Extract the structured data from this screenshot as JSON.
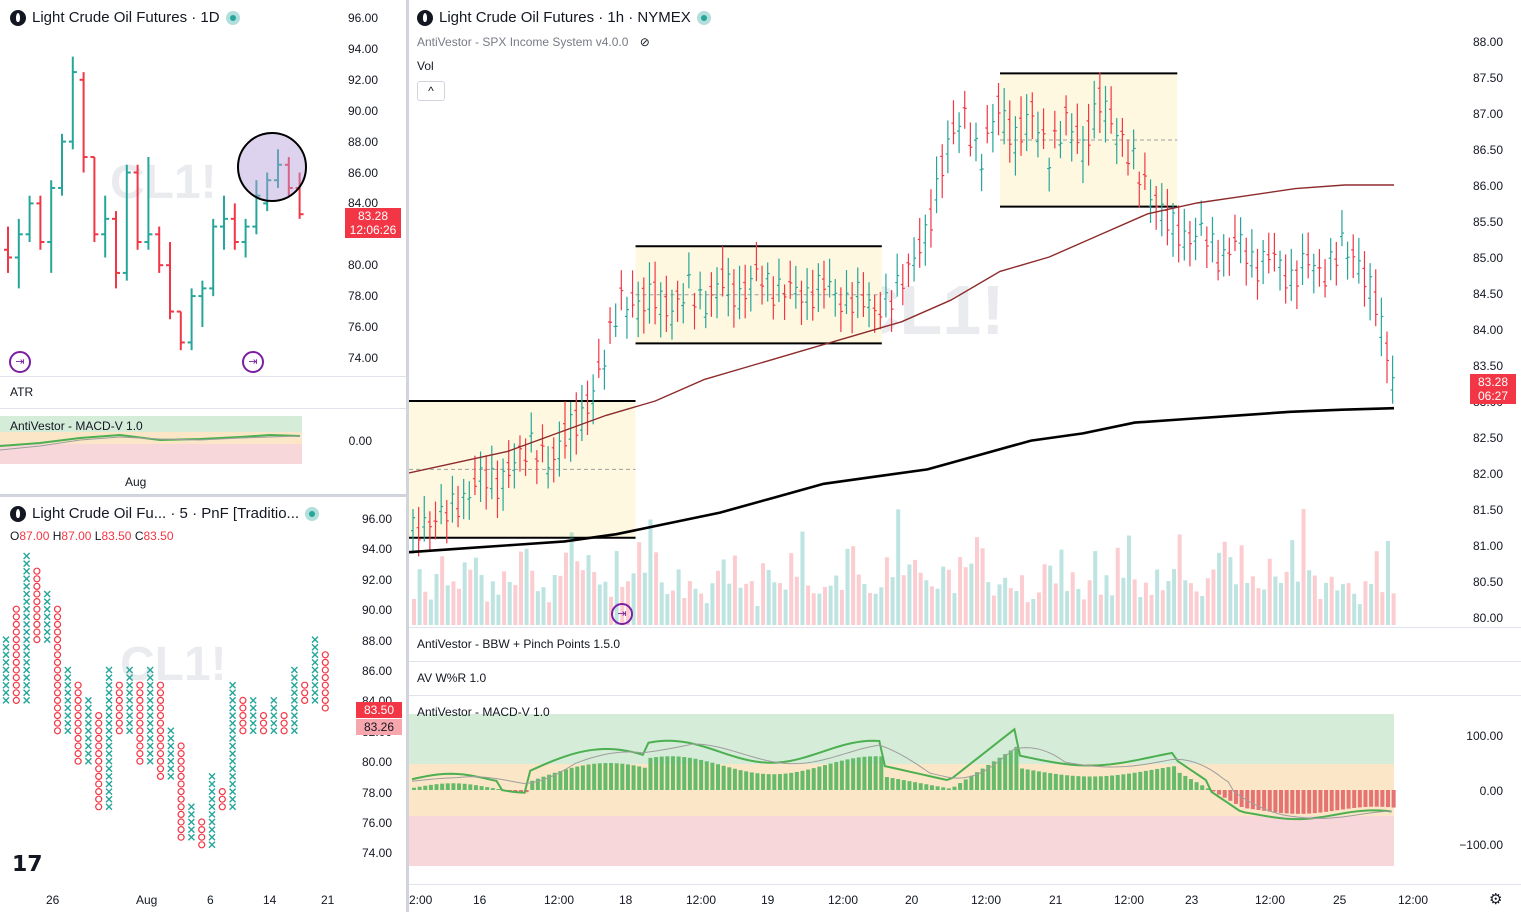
{
  "left_top": {
    "title": "Light Crude Oil Futures · 1D",
    "price_ticks": [
      "96.00",
      "94.00",
      "92.00",
      "90.00",
      "88.00",
      "86.00",
      "84.00",
      "82.00",
      "80.00",
      "78.00",
      "76.00",
      "74.00"
    ],
    "last_price": "83.28",
    "countdown": "12:06:26",
    "watermark": "CL1!",
    "atr_label": "ATR",
    "macd_label": "AntiVestor - MACD-V 1.0",
    "macd_tick": "0.00",
    "time_label": "Aug"
  },
  "left_bottom": {
    "title": "Light Crude Oil Fu... · 5 · PnF [Traditio...",
    "ohlc": {
      "o_label": "O",
      "o": "87.00",
      "h_label": "H",
      "h": "87.00",
      "l_label": "L",
      "l": "83.50",
      "c_label": "C",
      "c": "83.50"
    },
    "price_ticks": [
      "96.00",
      "94.00",
      "92.00",
      "90.00",
      "88.00",
      "86.00",
      "84.00",
      "82.00",
      "80.00",
      "78.00",
      "76.00",
      "74.00"
    ],
    "badge_1": "83.50",
    "badge_2": "83.26",
    "watermark": "CL1!",
    "time_ticks": [
      "26",
      "Aug",
      "6",
      "14",
      "21"
    ]
  },
  "right": {
    "title": "Light Crude Oil Futures · 1h · NYMEX",
    "indicator_1": "AntiVestor - SPX Income System v4.0.0",
    "vol_label": "Vol",
    "price_ticks": [
      "88.00",
      "87.50",
      "87.00",
      "86.50",
      "86.00",
      "85.50",
      "85.00",
      "84.50",
      "84.00",
      "83.50",
      "83.00",
      "82.50",
      "82.00",
      "81.50",
      "81.00",
      "80.50",
      "80.00"
    ],
    "last_price": "83.28",
    "countdown": "06:27",
    "watermark": "CL1!",
    "bbw_label": "AntiVestor - BBW + Pinch Points 1.5.0",
    "wr_label": "AV W%R 1.0",
    "macd_label": "AntiVestor - MACD-V 1.0",
    "macd_ticks": [
      "100.00",
      "0.00",
      "−100.00"
    ],
    "time_ticks": [
      "2:00",
      "16",
      "12:00",
      "18",
      "12:00",
      "19",
      "12:00",
      "20",
      "12:00",
      "21",
      "12:00",
      "23",
      "12:00",
      "25",
      "12:00"
    ]
  },
  "icons": {
    "replay": "replay-icon",
    "visibility": "eye-off-icon",
    "collapse": "chevron-up-icon",
    "settings": "gear-icon",
    "logo": "tradingview-logo"
  },
  "colors": {
    "up": "#26a69a",
    "down": "#f23645",
    "zone": "#fff8e1",
    "ma_dark": "#000000",
    "ma_red": "#8d2b2b",
    "macd_line": "#4caf50"
  },
  "chart_data": [
    {
      "type": "bar",
      "title": "Light Crude Oil Futures · 1D",
      "ylim": [
        73,
        97
      ],
      "ohlc": [
        [
          81.0,
          82.5,
          79.5,
          80.5
        ],
        [
          80.5,
          83.0,
          78.5,
          82.0
        ],
        [
          82.0,
          84.5,
          81.5,
          84.0
        ],
        [
          84.0,
          84.5,
          81.0,
          81.5
        ],
        [
          81.5,
          85.5,
          79.5,
          85.0
        ],
        [
          85.0,
          88.5,
          84.5,
          88.0
        ],
        [
          88.0,
          93.5,
          87.5,
          92.5
        ],
        [
          92.0,
          92.5,
          86.0,
          87.0
        ],
        [
          87.0,
          87.0,
          81.5,
          82.0
        ],
        [
          82.0,
          84.5,
          80.5,
          83.0
        ],
        [
          83.0,
          83.5,
          78.5,
          79.5
        ],
        [
          79.5,
          86.5,
          79.0,
          86.0
        ],
        [
          86.0,
          86.5,
          81.0,
          81.5
        ],
        [
          81.5,
          87.0,
          81.0,
          82.0
        ],
        [
          82.0,
          82.5,
          79.5,
          80.0
        ],
        [
          80.0,
          81.5,
          76.5,
          77.0
        ],
        [
          77.0,
          77.0,
          74.5,
          75.0
        ],
        [
          75.0,
          78.5,
          74.5,
          78.0
        ],
        [
          78.0,
          79.0,
          76.0,
          78.5
        ],
        [
          78.5,
          83.0,
          78.0,
          82.5
        ],
        [
          82.5,
          84.5,
          81.0,
          83.0
        ],
        [
          83.0,
          84.0,
          81.0,
          81.5
        ],
        [
          81.5,
          83.0,
          80.5,
          82.5
        ],
        [
          82.5,
          85.5,
          82.0,
          84.5
        ],
        [
          84.0,
          86.0,
          83.5,
          85.5
        ],
        [
          85.5,
          87.5,
          85.0,
          86.5
        ],
        [
          86.5,
          87.0,
          84.5,
          85.0
        ],
        [
          85.0,
          86.0,
          83.0,
          83.3
        ]
      ]
    },
    {
      "type": "bar",
      "title": "Light Crude Oil Futures · 1h · NYMEX",
      "ylim": [
        79.9,
        88.3
      ],
      "close_path": [
        81.2,
        81.3,
        81.5,
        81.6,
        82.0,
        81.8,
        82.2,
        82.4,
        82.1,
        82.6,
        82.8,
        83.5,
        84.4,
        84.3,
        84.5,
        84.2,
        84.6,
        84.3,
        84.7,
        84.4,
        84.8,
        84.5,
        84.6,
        84.4,
        84.7,
        84.3,
        84.5,
        84.2,
        84.5,
        84.9,
        85.4,
        86.5,
        87.0,
        86.3,
        87.1,
        86.6,
        87.0,
        86.4,
        86.9,
        86.5,
        87.2,
        86.7,
        86.3,
        85.8,
        85.5,
        85.2,
        85.4,
        84.9,
        85.3,
        84.8,
        85.1,
        84.6,
        85.0,
        84.7,
        85.2,
        84.9,
        84.4,
        83.3
      ],
      "ma_slow": [
        82.0,
        82.15,
        82.3,
        82.55,
        82.8,
        83.0,
        83.3,
        83.5,
        83.7,
        83.9,
        84.1,
        84.4,
        84.8,
        85.0,
        85.3,
        85.6,
        85.75,
        85.85,
        85.95,
        86.0,
        86.0
      ],
      "ma_long": [
        80.9,
        80.95,
        81.0,
        81.05,
        81.15,
        81.3,
        81.45,
        81.65,
        81.85,
        81.95,
        82.05,
        82.25,
        82.45,
        82.55,
        82.7,
        82.75,
        82.8,
        82.85,
        82.88,
        82.9
      ],
      "zones": [
        {
          "start": 0,
          "end": 0.23,
          "top": 83.0,
          "bottom": 81.1
        },
        {
          "start": 0.23,
          "end": 0.48,
          "top": 85.15,
          "bottom": 83.8
        },
        {
          "start": 0.6,
          "end": 0.78,
          "top": 87.55,
          "bottom": 85.7
        }
      ],
      "volume": [
        0.25,
        0.4,
        0.3,
        0.15,
        0.45,
        0.55,
        0.3,
        0.35,
        0.25,
        0.6,
        0.4,
        0.75,
        0.35,
        0.2,
        0.3,
        0.25,
        0.4,
        0.35,
        0.3,
        0.6,
        0.7,
        0.4,
        0.3,
        0.25,
        0.2,
        0.35,
        0.5,
        0.55,
        0.9,
        0.5,
        0.45,
        0.6,
        0.4,
        0.35,
        0.3,
        0.25,
        0.55,
        0.4,
        0.3,
        0.5,
        0.65,
        0.45,
        0.9,
        0.6,
        0.35,
        0.2,
        0.3,
        0.4,
        0.25,
        0.3,
        0.35,
        0.2,
        0.15,
        0.3,
        0.45,
        0.55,
        0.3,
        0.65
      ]
    }
  ]
}
